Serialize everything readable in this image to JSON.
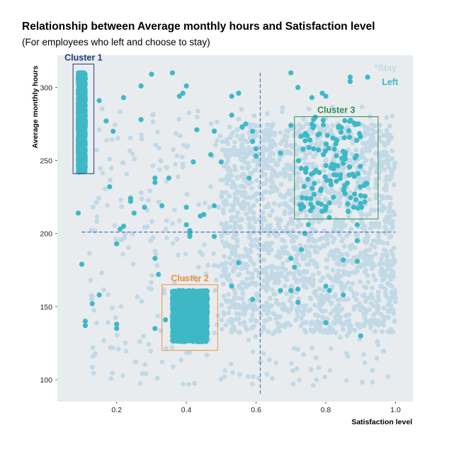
{
  "chart_data": {
    "type": "scatter",
    "title": "Relationship between Average monthly hours and Satisfaction level",
    "subtitle": "(For employees who left and choose to stay)",
    "xlabel": "Satisfaction level",
    "ylabel": "Average monthly hours",
    "xlim": [
      0.03,
      1.05
    ],
    "ylim": [
      85,
      322
    ],
    "xticks": [
      0.2,
      0.4,
      0.6,
      0.8,
      1.0
    ],
    "xtick_labels": [
      "0.2",
      "0.4",
      "0.6",
      "0.8",
      "1.0"
    ],
    "yticks": [
      100,
      150,
      200,
      250,
      300
    ],
    "ytick_labels": [
      "100",
      "150",
      "200",
      "250",
      "300"
    ],
    "grid": false,
    "background": "#e8ecef",
    "legend": {
      "placement": "top-right",
      "entries": [
        {
          "label": "*Stay",
          "color": "#c2d9e6"
        },
        {
          "label": "Left",
          "color": "#3fb8c6"
        }
      ]
    },
    "series": [
      {
        "name": "*Stay",
        "color": "#c2d9e6",
        "regions": [
          {
            "x": [
              0.12,
              1.0
            ],
            "y": [
              96,
              287
            ],
            "density": "sparse"
          },
          {
            "x": [
              0.5,
              1.0
            ],
            "y": [
              132,
              275
            ],
            "density": "dense"
          }
        ]
      },
      {
        "name": "Left",
        "color": "#3fb8c6",
        "clusters": [
          {
            "x": [
              0.09,
              0.11
            ],
            "y": [
              242,
              310
            ],
            "density": "dense"
          },
          {
            "x": [
              0.36,
              0.46
            ],
            "y": [
              126,
              161
            ],
            "density": "dense"
          },
          {
            "x": [
              0.72,
              0.92
            ],
            "y": [
              215,
              280
            ],
            "density": "medium"
          }
        ],
        "scattered": [
          [
            0.09,
            214
          ],
          [
            0.1,
            179
          ],
          [
            0.11,
            140
          ],
          [
            0.11,
            137
          ],
          [
            0.13,
            152
          ],
          [
            0.15,
            158
          ],
          [
            0.15,
            291
          ],
          [
            0.17,
            277
          ],
          [
            0.18,
            232
          ],
          [
            0.2,
            193
          ],
          [
            0.2,
            135
          ],
          [
            0.2,
            138
          ],
          [
            0.21,
            203
          ],
          [
            0.22,
            293
          ],
          [
            0.22,
            205
          ],
          [
            0.24,
            224
          ],
          [
            0.25,
            214
          ],
          [
            0.27,
            301
          ],
          [
            0.27,
            278
          ],
          [
            0.28,
            218
          ],
          [
            0.3,
            309
          ],
          [
            0.31,
            238
          ],
          [
            0.31,
            235
          ],
          [
            0.31,
            183
          ],
          [
            0.31,
            135
          ],
          [
            0.32,
            172
          ],
          [
            0.33,
            219
          ],
          [
            0.34,
            141
          ],
          [
            0.35,
            238
          ],
          [
            0.36,
            310
          ],
          [
            0.38,
            294
          ],
          [
            0.39,
            296
          ],
          [
            0.4,
            301
          ],
          [
            0.4,
            218
          ],
          [
            0.4,
            206
          ],
          [
            0.41,
            202
          ],
          [
            0.41,
            198
          ],
          [
            0.42,
            249
          ],
          [
            0.43,
            271
          ],
          [
            0.44,
            212
          ],
          [
            0.45,
            213
          ],
          [
            0.47,
            254
          ],
          [
            0.48,
            219
          ],
          [
            0.48,
            270
          ],
          [
            0.48,
            198
          ],
          [
            0.5,
            249
          ],
          [
            0.53,
            281
          ],
          [
            0.53,
            294
          ],
          [
            0.53,
            164
          ],
          [
            0.55,
            296
          ],
          [
            0.55,
            180
          ],
          [
            0.57,
            275
          ],
          [
            0.58,
            238
          ],
          [
            0.59,
            263
          ],
          [
            0.59,
            155
          ],
          [
            0.6,
            258
          ],
          [
            0.6,
            253
          ],
          [
            0.67,
            255
          ],
          [
            0.67,
            161
          ],
          [
            0.7,
            310
          ],
          [
            0.7,
            274
          ],
          [
            0.7,
            183
          ],
          [
            0.7,
            161
          ],
          [
            0.71,
            177
          ],
          [
            0.72,
            162
          ],
          [
            0.72,
            153
          ],
          [
            0.73,
            189
          ],
          [
            0.75,
            206
          ],
          [
            0.76,
            293
          ],
          [
            0.79,
            296
          ],
          [
            0.8,
            294
          ],
          [
            0.8,
            164
          ],
          [
            0.8,
            139
          ],
          [
            0.81,
            211
          ],
          [
            0.81,
            161
          ],
          [
            0.85,
            182
          ],
          [
            0.85,
            158
          ],
          [
            0.87,
            307
          ],
          [
            0.87,
            304
          ],
          [
            0.89,
            181
          ],
          [
            0.89,
            195
          ],
          [
            0.89,
            206
          ],
          [
            0.9,
            226
          ],
          [
            0.9,
            130
          ],
          [
            0.92,
            307
          ],
          [
            0.72,
            300
          ],
          [
            0.59,
            270
          ],
          [
            0.56,
            273
          ],
          [
            0.41,
            200
          ],
          [
            0.24,
            222
          ],
          [
            0.19,
            270
          ],
          [
            0.74,
            200
          ],
          [
            0.88,
            218
          ],
          [
            0.83,
            240
          ]
        ]
      }
    ],
    "reference_lines": [
      {
        "orientation": "vertical",
        "value": 0.612,
        "color": "#4a72b0",
        "style": "dashed"
      },
      {
        "orientation": "horizontal",
        "value": 201,
        "color": "#4a72b0",
        "style": "dashed"
      }
    ],
    "annotations": [
      {
        "label": "Cluster 1",
        "color": "#1f3b7a",
        "x": [
          0.075,
          0.135
        ],
        "y": [
          241,
          316
        ]
      },
      {
        "label": "Cluster 2",
        "color": "#f0923a",
        "x": [
          0.33,
          0.49
        ],
        "y": [
          120,
          165
        ]
      },
      {
        "label": "Cluster 3",
        "color": "#2e8b57",
        "x": [
          0.71,
          0.95
        ],
        "y": [
          210,
          280
        ]
      }
    ]
  }
}
